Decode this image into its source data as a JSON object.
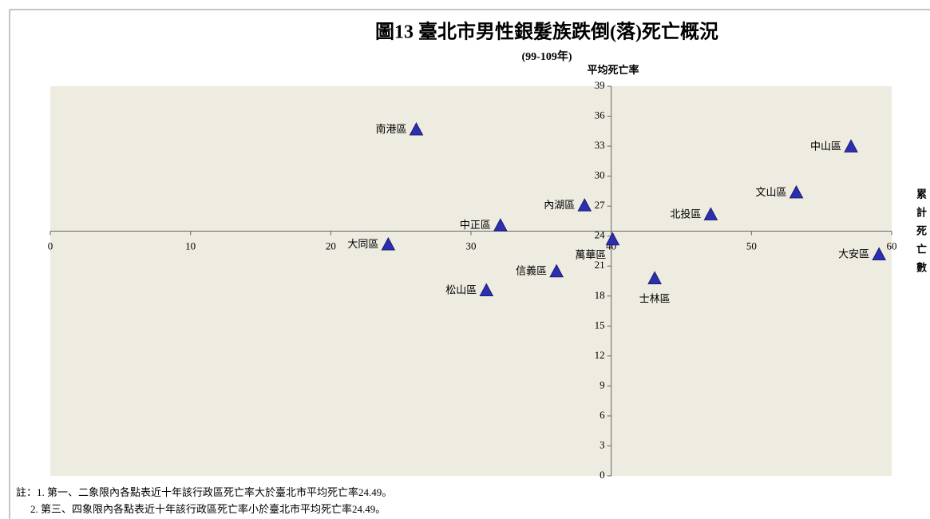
{
  "chart_data": {
    "type": "scatter",
    "title": "圖13 臺北市男性銀髮族跌倒(落)死亡概況",
    "subtitle": "(99-109年)",
    "y_label": "平均死亡率",
    "x_label": "累計死亡數",
    "labels": [
      "南港區",
      "中山區",
      "文山區",
      "內湖區",
      "北投區",
      "中正區",
      "大同區",
      "萬華區",
      "大安區",
      "信義區",
      "士林區",
      "松山區"
    ],
    "x": [
      26.1,
      57.1,
      53.2,
      38.1,
      47.1,
      32.1,
      24.1,
      40.1,
      59.1,
      36.1,
      43.1,
      31.1
    ],
    "y": [
      34.6,
      32.9,
      28.3,
      27.0,
      26.1,
      25.0,
      23.1,
      23.6,
      22.1,
      20.4,
      19.7,
      18.5
    ],
    "color": "#2b2fb0",
    "xlim": [
      0,
      60
    ],
    "xticks": [
      0,
      10,
      20,
      30,
      40,
      50,
      60
    ],
    "ylim": [
      0,
      39
    ],
    "yticks": [
      0,
      3,
      6,
      9,
      12,
      15,
      18,
      21,
      24,
      27,
      30,
      33,
      36,
      39
    ],
    "x_cross": 40,
    "y_cross": 24.49,
    "notes": [
      "註：1. 第一、二象限內各點表近十年該行政區死亡率大於臺北市平均死亡率24.49。",
      "2. 第三、四象限內各點表近十年該行政區死亡率小於臺北市平均死亡率24.49。"
    ]
  }
}
